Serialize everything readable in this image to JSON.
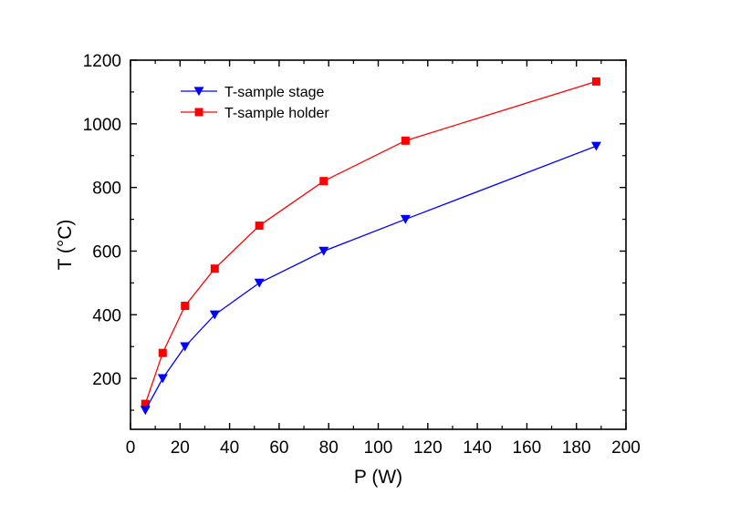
{
  "chart_data": {
    "type": "line",
    "title": "",
    "xlabel": "P (W)",
    "ylabel": "T (°C)",
    "xlim": [
      0,
      200
    ],
    "ylim": [
      40,
      1200
    ],
    "xticks": [
      0,
      20,
      40,
      60,
      80,
      100,
      120,
      140,
      160,
      180,
      200
    ],
    "yticks": [
      200,
      400,
      600,
      800,
      1000,
      1200
    ],
    "grid": false,
    "legend_position": "top-left",
    "series": [
      {
        "name": "T-sample stage",
        "color": "#0000ff",
        "marker": "triangle-down",
        "x": [
          6,
          13,
          22,
          34,
          52,
          78,
          111,
          188
        ],
        "y": [
          100,
          200,
          300,
          400,
          500,
          600,
          700,
          930
        ]
      },
      {
        "name": "T-sample holder",
        "color": "#ff0000",
        "marker": "square",
        "x": [
          6,
          13,
          22,
          34,
          52,
          78,
          111,
          188
        ],
        "y": [
          120,
          280,
          428,
          545,
          680,
          820,
          947,
          1133
        ]
      }
    ]
  }
}
